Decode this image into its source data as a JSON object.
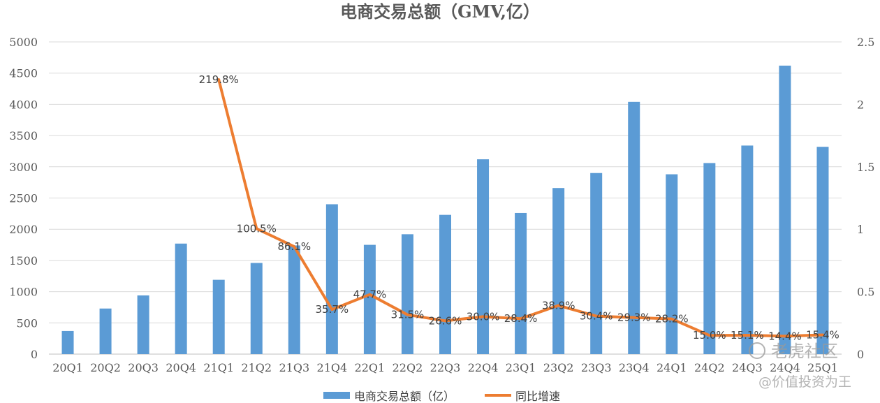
{
  "chart_data": {
    "type": "bar",
    "title": "电商交易总额（GMV,亿）",
    "categories": [
      "20Q1",
      "20Q2",
      "20Q3",
      "20Q4",
      "21Q1",
      "21Q2",
      "21Q3",
      "21Q4",
      "22Q1",
      "22Q2",
      "22Q3",
      "22Q4",
      "23Q1",
      "23Q2",
      "23Q3",
      "23Q4",
      "24Q1",
      "24Q2",
      "24Q3",
      "24Q4",
      "25Q1"
    ],
    "series": [
      {
        "name": "电商交易总额（亿）",
        "type": "bar",
        "axis": "left",
        "color": "#5b9bd5",
        "values": [
          370,
          730,
          940,
          1770,
          1190,
          1460,
          1740,
          2400,
          1750,
          1920,
          2230,
          3120,
          2260,
          2660,
          2900,
          4040,
          2880,
          3060,
          3340,
          4620,
          3320
        ]
      },
      {
        "name": "同比增速",
        "type": "line",
        "axis": "right",
        "color": "#ed7d31",
        "values": [
          null,
          null,
          null,
          null,
          2.198,
          1.005,
          0.861,
          0.357,
          0.477,
          0.315,
          0.266,
          0.3,
          0.284,
          0.389,
          0.304,
          0.293,
          0.282,
          0.15,
          0.151,
          0.144,
          0.154
        ],
        "labels": [
          null,
          null,
          null,
          null,
          "219.8%",
          "100.5%",
          "86.1%",
          "35.7%",
          "47.7%",
          "31.5%",
          "26.6%",
          "30.0%",
          "28.4%",
          "38.9%",
          "30.4%",
          "29.3%",
          "28.2%",
          "15.0%",
          "15.1%",
          "14.4%",
          "15.4%"
        ]
      }
    ],
    "y_left": {
      "min": 0,
      "max": 5000,
      "ticks": [
        "0",
        "500",
        "1000",
        "1500",
        "2000",
        "2500",
        "3000",
        "3500",
        "4000",
        "4500",
        "5000"
      ]
    },
    "y_right": {
      "min": 0,
      "max": 2.5,
      "ticks": [
        "0",
        "0.5",
        "1",
        "1.5",
        "2",
        "2.5"
      ]
    },
    "grid": true,
    "legend_position": "bottom"
  },
  "watermark": {
    "brand": "老虎社区",
    "handle": "@价值投资为王"
  }
}
